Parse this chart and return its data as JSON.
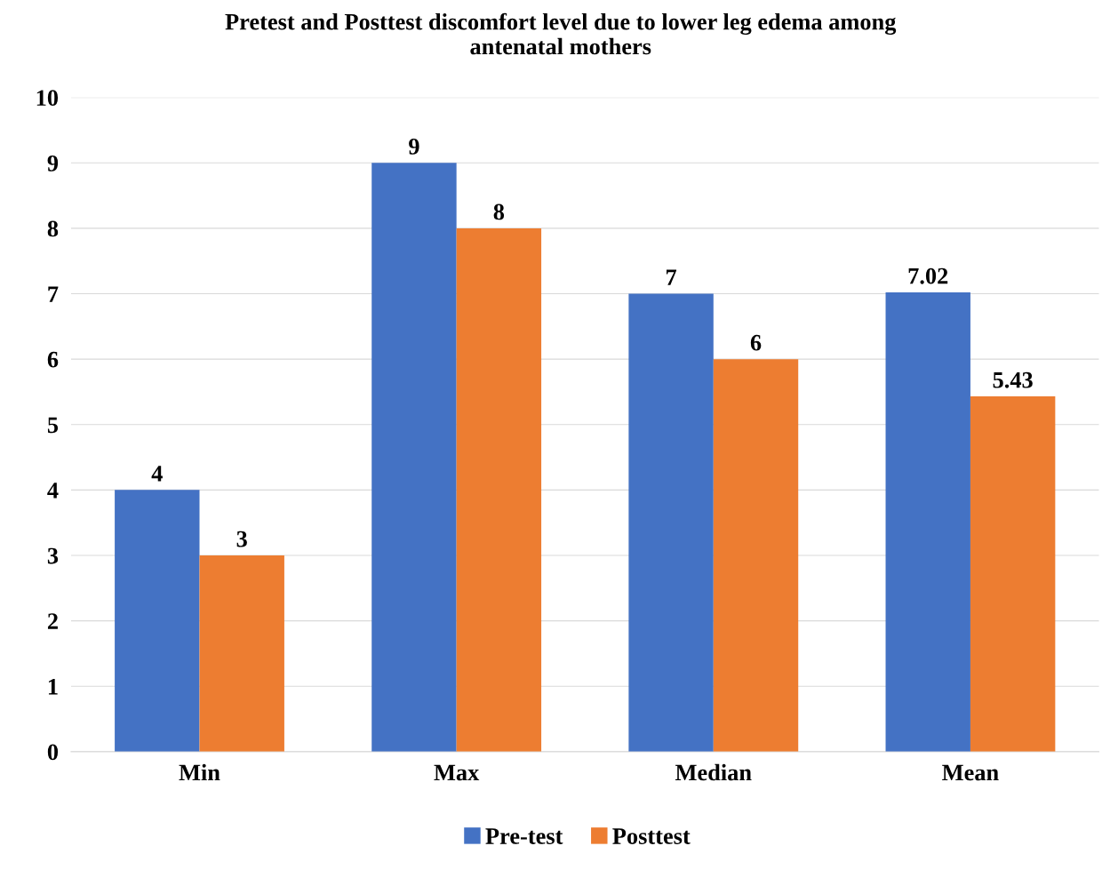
{
  "chart_data": {
    "type": "bar",
    "title": "Pretest and Posttest discomfort level due to lower leg edema among\nantenatal mothers",
    "categories": [
      "Min",
      "Max",
      "Median",
      "Mean"
    ],
    "series": [
      {
        "name": "Pre-test",
        "color": "#4472c4",
        "values": [
          4,
          9,
          7,
          7.02
        ]
      },
      {
        "name": "Posttest",
        "color": "#ed7d31",
        "values": [
          3,
          8,
          6,
          5.43
        ]
      }
    ],
    "ylim": [
      0,
      10
    ],
    "yticks": [
      0,
      1,
      2,
      3,
      4,
      5,
      6,
      7,
      8,
      9,
      10
    ],
    "grid": "y",
    "legend": "bottom",
    "data_labels": true
  }
}
